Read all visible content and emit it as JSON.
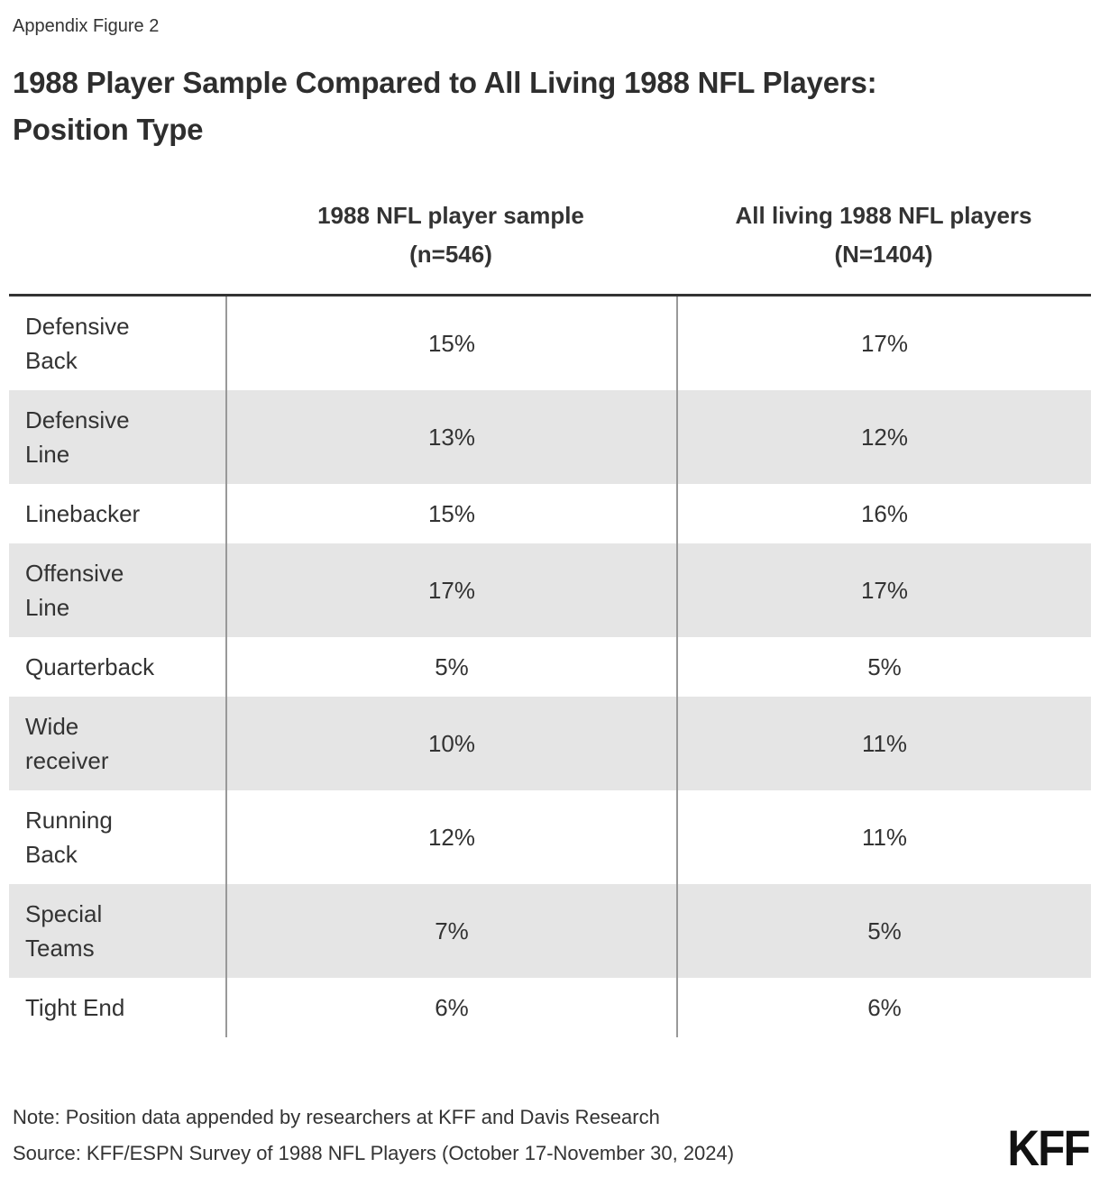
{
  "colors": {
    "text": "#333333",
    "row_alt_background": "#e5e5e5",
    "table_top_border": "#333333",
    "column_divider": "#999999",
    "logo": "#111111"
  },
  "header": {
    "appendix_label": "Appendix Figure 2",
    "title": "1988 Player Sample Compared to All Living 1988 NFL Players:\nPosition Type"
  },
  "table": {
    "columns": [
      {
        "line1": "1988 NFL player sample",
        "line2": "(n=546)"
      },
      {
        "line1": "All living 1988 NFL players",
        "line2": "(N=1404)"
      }
    ],
    "rows": [
      {
        "position": "Defensive\nBack",
        "sample": "15%",
        "all_players": "17%"
      },
      {
        "position": "Defensive\nLine",
        "sample": "13%",
        "all_players": "12%"
      },
      {
        "position": "Linebacker",
        "sample": "15%",
        "all_players": "16%"
      },
      {
        "position": "Offensive\nLine",
        "sample": "17%",
        "all_players": "17%"
      },
      {
        "position": "Quarterback",
        "sample": "5%",
        "all_players": "5%"
      },
      {
        "position": "Wide\nreceiver",
        "sample": "10%",
        "all_players": "11%"
      },
      {
        "position": "Running\nBack",
        "sample": "12%",
        "all_players": "11%"
      },
      {
        "position": "Special\nTeams",
        "sample": "7%",
        "all_players": "5%"
      },
      {
        "position": "Tight End",
        "sample": "6%",
        "all_players": "6%"
      }
    ]
  },
  "footer": {
    "note": "Note: Position data appended by researchers at KFF and Davis Research",
    "source": "Source: KFF/ESPN Survey of 1988 NFL Players (October 17-November 30, 2024)",
    "logo_text": "KFF"
  },
  "chart_data": {
    "type": "table",
    "title": "1988 Player Sample Compared to All Living 1988 NFL Players: Position Type",
    "subtitle": "Appendix Figure 2",
    "categories": [
      "Defensive Back",
      "Defensive Line",
      "Linebacker",
      "Offensive Line",
      "Quarterback",
      "Wide receiver",
      "Running Back",
      "Special Teams",
      "Tight End"
    ],
    "series": [
      {
        "name": "1988 NFL player sample (n=546)",
        "unit": "%",
        "values": [
          15,
          13,
          15,
          17,
          5,
          10,
          12,
          7,
          6
        ]
      },
      {
        "name": "All living 1988 NFL players (N=1404)",
        "unit": "%",
        "values": [
          17,
          12,
          16,
          17,
          5,
          11,
          11,
          5,
          6
        ]
      }
    ],
    "note": "Note: Position data appended by researchers at KFF and Davis Research",
    "source": "Source: KFF/ESPN Survey of 1988 NFL Players (October 17-November 30, 2024)"
  }
}
